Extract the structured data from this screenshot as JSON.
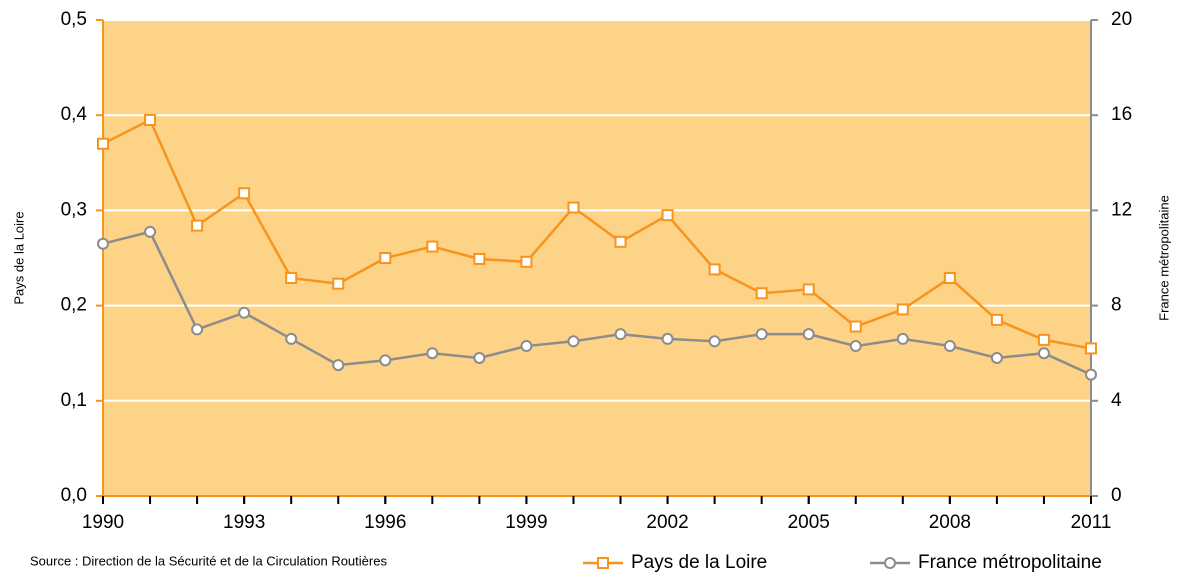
{
  "chart_data": {
    "type": "line",
    "source": "Source : Direction de la Sécurité et de la Circulation Routières",
    "y_label": "Pays de la Loire",
    "y2_label": "France métropolitaine",
    "x": [
      1990,
      1991,
      1992,
      1993,
      1994,
      1995,
      1996,
      1997,
      1998,
      1999,
      2000,
      2001,
      2002,
      2003,
      2004,
      2005,
      2006,
      2007,
      2008,
      2009,
      2010,
      2011
    ],
    "xlim": [
      1990,
      2011
    ],
    "xticks": [
      1990,
      1993,
      1996,
      1999,
      2002,
      2005,
      2008,
      2011
    ],
    "ylim": [
      0,
      0.5
    ],
    "yticks": [
      {
        "value": 0,
        "label": "0,0"
      },
      {
        "value": 0.1,
        "label": "0,1"
      },
      {
        "value": 0.2,
        "label": "0,2"
      },
      {
        "value": 0.3,
        "label": "0,3"
      },
      {
        "value": 0.4,
        "label": "0,4"
      },
      {
        "value": 0.5,
        "label": "0,5"
      }
    ],
    "y2lim": [
      0,
      20
    ],
    "y2ticks": [
      0,
      4,
      8,
      12,
      16,
      20
    ],
    "grid": true,
    "background": "#fdd387",
    "series": [
      {
        "name": "Pays de la Loire",
        "color": "#f7941d",
        "marker": "square",
        "values": [
          0.37,
          0.395,
          0.284,
          0.318,
          0.229,
          0.223,
          0.25,
          0.262,
          0.249,
          0.246,
          0.303,
          0.267,
          0.295,
          0.238,
          0.213,
          0.217,
          0.178,
          0.196,
          0.229,
          0.185,
          0.164,
          0.155
        ]
      },
      {
        "name": "France métropolitaine",
        "color": "#8c8c8c",
        "marker": "circle",
        "axis": "y2",
        "values": [
          10.6,
          11.1,
          7.0,
          7.7,
          6.6,
          5.5,
          5.7,
          6.0,
          5.8,
          6.3,
          6.5,
          6.8,
          6.6,
          6.5,
          6.8,
          6.8,
          6.3,
          6.6,
          6.3,
          5.8,
          6.0,
          5.1
        ]
      }
    ]
  }
}
